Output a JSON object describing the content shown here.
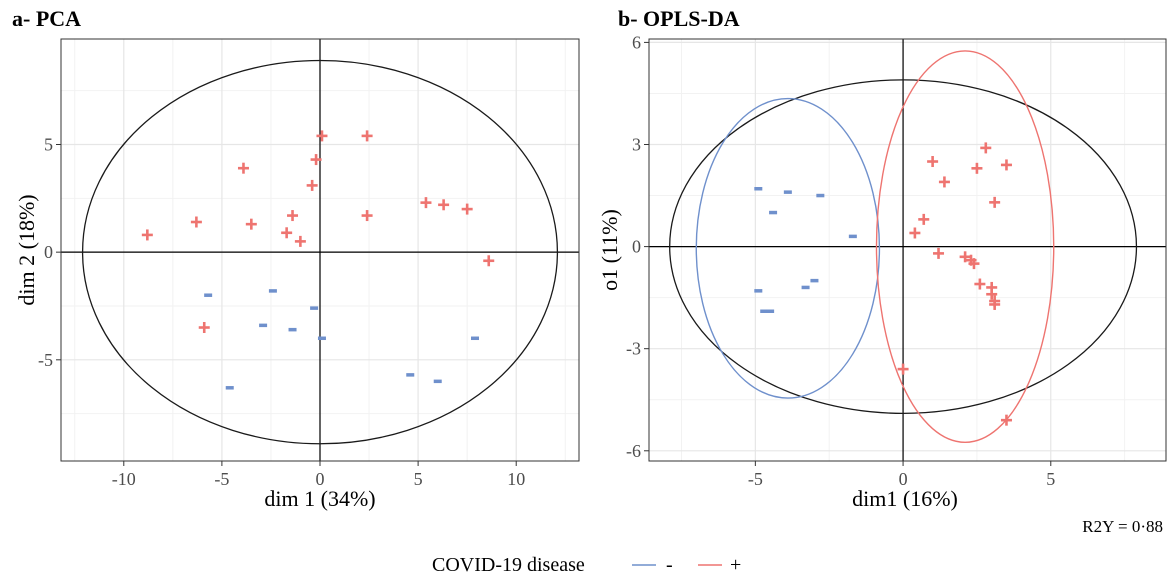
{
  "chart_data": [
    {
      "type": "scatter",
      "title": "a- PCA",
      "xlabel": "dim 1 (34%)",
      "ylabel": "dim 2 (18%)",
      "xlim": [
        -13.2,
        13.2
      ],
      "ylim": [
        -9.7,
        9.9
      ],
      "xticks": [
        -10,
        -5,
        0,
        5,
        10
      ],
      "yticks": [
        -5,
        0,
        5
      ],
      "grid": true,
      "ellipse": {
        "center": [
          0,
          0
        ],
        "rx": 12.1,
        "ry": 8.9
      },
      "series": [
        {
          "name": "-",
          "marker": "minus",
          "color": "#6f90cc",
          "points": [
            [
              -5.7,
              -2.0
            ],
            [
              -2.4,
              -1.8
            ],
            [
              -2.9,
              -3.4
            ],
            [
              -1.4,
              -3.6
            ],
            [
              -0.3,
              -2.6
            ],
            [
              0.1,
              -4.0
            ],
            [
              -4.6,
              -6.3
            ],
            [
              4.6,
              -5.7
            ],
            [
              6.0,
              -6.0
            ],
            [
              7.9,
              -4.0
            ]
          ]
        },
        {
          "name": "+",
          "marker": "plus",
          "color": "#ee7470",
          "points": [
            [
              -8.8,
              0.8
            ],
            [
              -6.3,
              1.4
            ],
            [
              -3.5,
              1.3
            ],
            [
              -3.9,
              3.9
            ],
            [
              -1.4,
              1.7
            ],
            [
              -1.7,
              0.9
            ],
            [
              -1.0,
              0.5
            ],
            [
              -0.4,
              3.1
            ],
            [
              -0.2,
              4.3
            ],
            [
              0.1,
              5.4
            ],
            [
              2.4,
              5.4
            ],
            [
              2.4,
              1.7
            ],
            [
              5.4,
              2.3
            ],
            [
              6.3,
              2.2
            ],
            [
              7.5,
              2.0
            ],
            [
              8.6,
              -0.4
            ],
            [
              -5.9,
              -3.5
            ]
          ]
        }
      ]
    },
    {
      "type": "scatter",
      "title": "b- OPLS-DA",
      "xlabel": "dim1 (16%)",
      "ylabel": "o1 (11%)",
      "xlim": [
        -8.6,
        8.9
      ],
      "ylim": [
        -6.3,
        6.1
      ],
      "xticks": [
        -5,
        0,
        5
      ],
      "yticks": [
        -6,
        -3,
        0,
        3,
        6
      ],
      "grid": true,
      "annotation": "R2Y = 0·88",
      "ellipse": {
        "center": [
          0,
          0
        ],
        "rx": 7.9,
        "ry": 4.9
      },
      "group_ellipses": [
        {
          "name": "-",
          "color": "#6f90cc",
          "center": [
            -3.9,
            -0.05
          ],
          "rx": 3.1,
          "ry": 4.4
        },
        {
          "name": "+",
          "color": "#ee7470",
          "center": [
            2.1,
            0.0
          ],
          "rx": 3.0,
          "ry": 5.75
        }
      ],
      "series": [
        {
          "name": "-",
          "marker": "minus",
          "color": "#6f90cc",
          "points": [
            [
              -4.9,
              1.7
            ],
            [
              -3.9,
              1.6
            ],
            [
              -2.8,
              1.5
            ],
            [
              -4.4,
              1.0
            ],
            [
              -1.7,
              0.3
            ],
            [
              -3.0,
              -1.0
            ],
            [
              -3.3,
              -1.2
            ],
            [
              -4.9,
              -1.3
            ],
            [
              -4.7,
              -1.9
            ],
            [
              -4.5,
              -1.9
            ]
          ]
        },
        {
          "name": "+",
          "marker": "plus",
          "color": "#ee7470",
          "points": [
            [
              1.0,
              2.5
            ],
            [
              1.4,
              1.9
            ],
            [
              2.8,
              2.9
            ],
            [
              2.5,
              2.3
            ],
            [
              3.5,
              2.4
            ],
            [
              3.1,
              1.3
            ],
            [
              0.7,
              0.8
            ],
            [
              0.4,
              0.4
            ],
            [
              1.2,
              -0.2
            ],
            [
              2.1,
              -0.3
            ],
            [
              2.3,
              -0.4
            ],
            [
              2.4,
              -0.5
            ],
            [
              2.6,
              -1.1
            ],
            [
              3.0,
              -1.2
            ],
            [
              3.0,
              -1.4
            ],
            [
              3.1,
              -1.6
            ],
            [
              3.1,
              -1.7
            ],
            [
              0.0,
              -3.6
            ],
            [
              3.5,
              -5.1
            ]
          ]
        }
      ]
    }
  ],
  "legend": {
    "title": "COVID-19 disease",
    "items": [
      {
        "label": "-",
        "color": "#6f90cc"
      },
      {
        "label": "+",
        "color": "#ee7470"
      }
    ]
  }
}
